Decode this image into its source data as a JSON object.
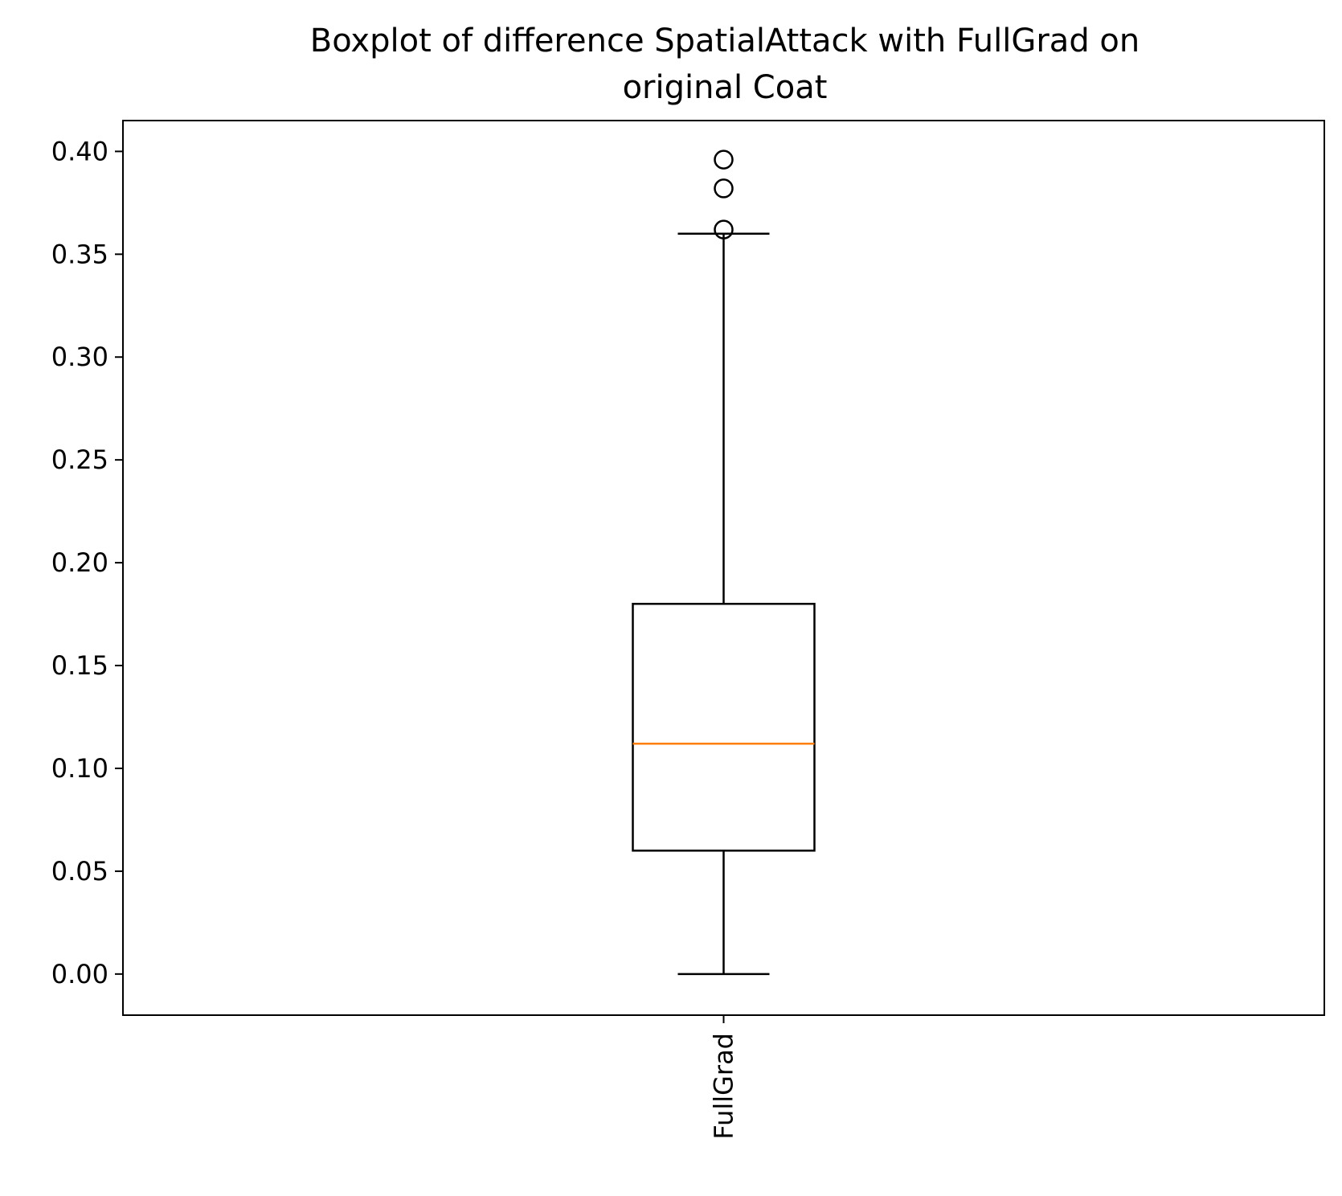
{
  "chart_data": {
    "type": "box",
    "title_lines": [
      "Boxplot of difference SpatialAttack with FullGrad on",
      "original Coat"
    ],
    "xlabel": "",
    "ylabel": "",
    "categories": [
      "FullGrad"
    ],
    "ylim": [
      -0.02,
      0.415
    ],
    "yticks": [
      0.0,
      0.05,
      0.1,
      0.15,
      0.2,
      0.25,
      0.3,
      0.35,
      0.4
    ],
    "ytick_labels": [
      "0.00",
      "0.05",
      "0.10",
      "0.15",
      "0.20",
      "0.25",
      "0.30",
      "0.35",
      "0.40"
    ],
    "boxes": [
      {
        "name": "FullGrad",
        "whisker_low": 0.0,
        "q1": 0.06,
        "median": 0.112,
        "q3": 0.18,
        "whisker_high": 0.36,
        "outliers": [
          0.362,
          0.382,
          0.396
        ]
      }
    ],
    "grid": false,
    "colors": {
      "box": "#000000",
      "median": "#ff7f0e"
    }
  }
}
